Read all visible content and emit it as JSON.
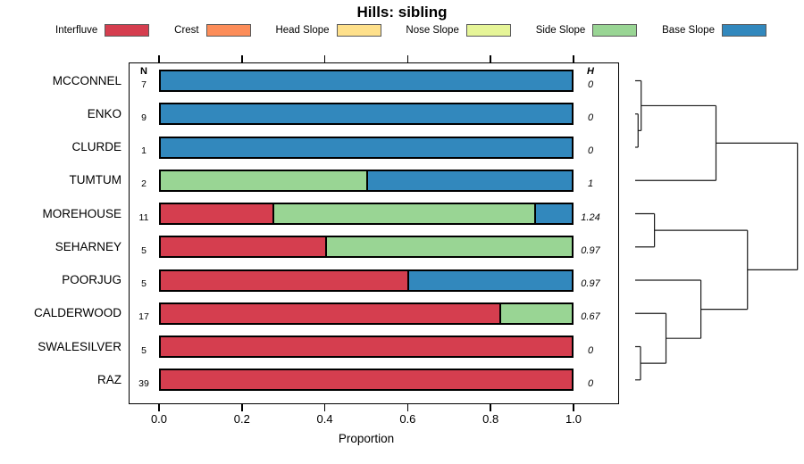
{
  "title": "Hills: sibling",
  "columns": {
    "n_header": "N",
    "h_header": "H"
  },
  "axis": {
    "label": "Proportion",
    "ticks": [
      "0.0",
      "0.2",
      "0.4",
      "0.6",
      "0.8",
      "1.0"
    ],
    "tick_values": [
      0,
      0.2,
      0.4,
      0.6,
      0.8,
      1.0
    ]
  },
  "palette": {
    "Interfluve": "#D53E4F",
    "Crest": "#FC8D59",
    "Head Slope": "#FEE08B",
    "Nose Slope": "#E6F598",
    "Side Slope": "#99D594",
    "Base Slope": "#3288BD"
  },
  "legend_labels": [
    "Interfluve",
    "Crest",
    "Head Slope",
    "Nose Slope",
    "Side Slope",
    "Base Slope"
  ],
  "chart_data": {
    "type": "bar",
    "orientation": "horizontal",
    "stacked": true,
    "title": "Hills: sibling",
    "xlabel": "Proportion",
    "xlim": [
      0,
      1
    ],
    "categories": [
      "MCCONNEL",
      "ENKO",
      "CLURDE",
      "TUMTUM",
      "MOREHOUSE",
      "SEHARNEY",
      "POORJUG",
      "CALDERWOOD",
      "SWALESILVER",
      "RAZ"
    ],
    "series_legend": [
      "Interfluve",
      "Crest",
      "Head Slope",
      "Nose Slope",
      "Side Slope",
      "Base Slope"
    ],
    "rows": [
      {
        "name": "MCCONNEL",
        "n": 7,
        "h": "0",
        "segments": [
          {
            "category": "Base Slope",
            "value": 1.0
          }
        ]
      },
      {
        "name": "ENKO",
        "n": 9,
        "h": "0",
        "segments": [
          {
            "category": "Base Slope",
            "value": 1.0
          }
        ]
      },
      {
        "name": "CLURDE",
        "n": 1,
        "h": "0",
        "segments": [
          {
            "category": "Base Slope",
            "value": 1.0
          }
        ]
      },
      {
        "name": "TUMTUM",
        "n": 2,
        "h": "1",
        "segments": [
          {
            "category": "Side Slope",
            "value": 0.5
          },
          {
            "category": "Base Slope",
            "value": 0.5
          }
        ]
      },
      {
        "name": "MOREHOUSE",
        "n": 11,
        "h": "1.24",
        "segments": [
          {
            "category": "Interfluve",
            "value": 0.2727
          },
          {
            "category": "Side Slope",
            "value": 0.6364
          },
          {
            "category": "Base Slope",
            "value": 0.0909
          }
        ]
      },
      {
        "name": "SEHARNEY",
        "n": 5,
        "h": "0.97",
        "segments": [
          {
            "category": "Interfluve",
            "value": 0.4
          },
          {
            "category": "Side Slope",
            "value": 0.6
          }
        ]
      },
      {
        "name": "POORJUG",
        "n": 5,
        "h": "0.97",
        "segments": [
          {
            "category": "Interfluve",
            "value": 0.6
          },
          {
            "category": "Base Slope",
            "value": 0.4
          }
        ]
      },
      {
        "name": "CALDERWOOD",
        "n": 17,
        "h": "0.67",
        "segments": [
          {
            "category": "Interfluve",
            "value": 0.8235
          },
          {
            "category": "Side Slope",
            "value": 0.1765
          }
        ]
      },
      {
        "name": "SWALESILVER",
        "n": 5,
        "h": "0",
        "segments": [
          {
            "category": "Interfluve",
            "value": 1.0
          }
        ]
      },
      {
        "name": "RAZ",
        "n": 39,
        "h": "0",
        "segments": [
          {
            "category": "Interfluve",
            "value": 1.0
          }
        ]
      }
    ],
    "dendrogram": {
      "position": "right",
      "leaves": [
        "MCCONNEL",
        "ENKO",
        "CLURDE",
        "TUMTUM",
        "MOREHOUSE",
        "SEHARNEY",
        "POORJUG",
        "CALDERWOOD",
        "SWALESILVER",
        "RAZ"
      ],
      "merges": [
        {
          "id": "m1",
          "children": [
            "ENKO",
            "CLURDE"
          ],
          "height": 0.018
        },
        {
          "id": "m2",
          "children": [
            "MCCONNEL",
            "m1"
          ],
          "height": 0.037
        },
        {
          "id": "m3",
          "children": [
            "m2",
            "TUMTUM"
          ],
          "height": 0.498
        },
        {
          "id": "m4",
          "children": [
            "MOREHOUSE",
            "SEHARNEY"
          ],
          "height": 0.119
        },
        {
          "id": "m5",
          "children": [
            "SWALESILVER",
            "RAZ"
          ],
          "height": 0.033
        },
        {
          "id": "m6",
          "children": [
            "CALDERWOOD",
            "m5"
          ],
          "height": 0.19
        },
        {
          "id": "m7",
          "children": [
            "POORJUG",
            "m6"
          ],
          "height": 0.405
        },
        {
          "id": "m8",
          "children": [
            "m4",
            "m7"
          ],
          "height": 0.692
        },
        {
          "id": "m9",
          "children": [
            "m3",
            "m8"
          ],
          "height": 1.0
        }
      ]
    }
  }
}
